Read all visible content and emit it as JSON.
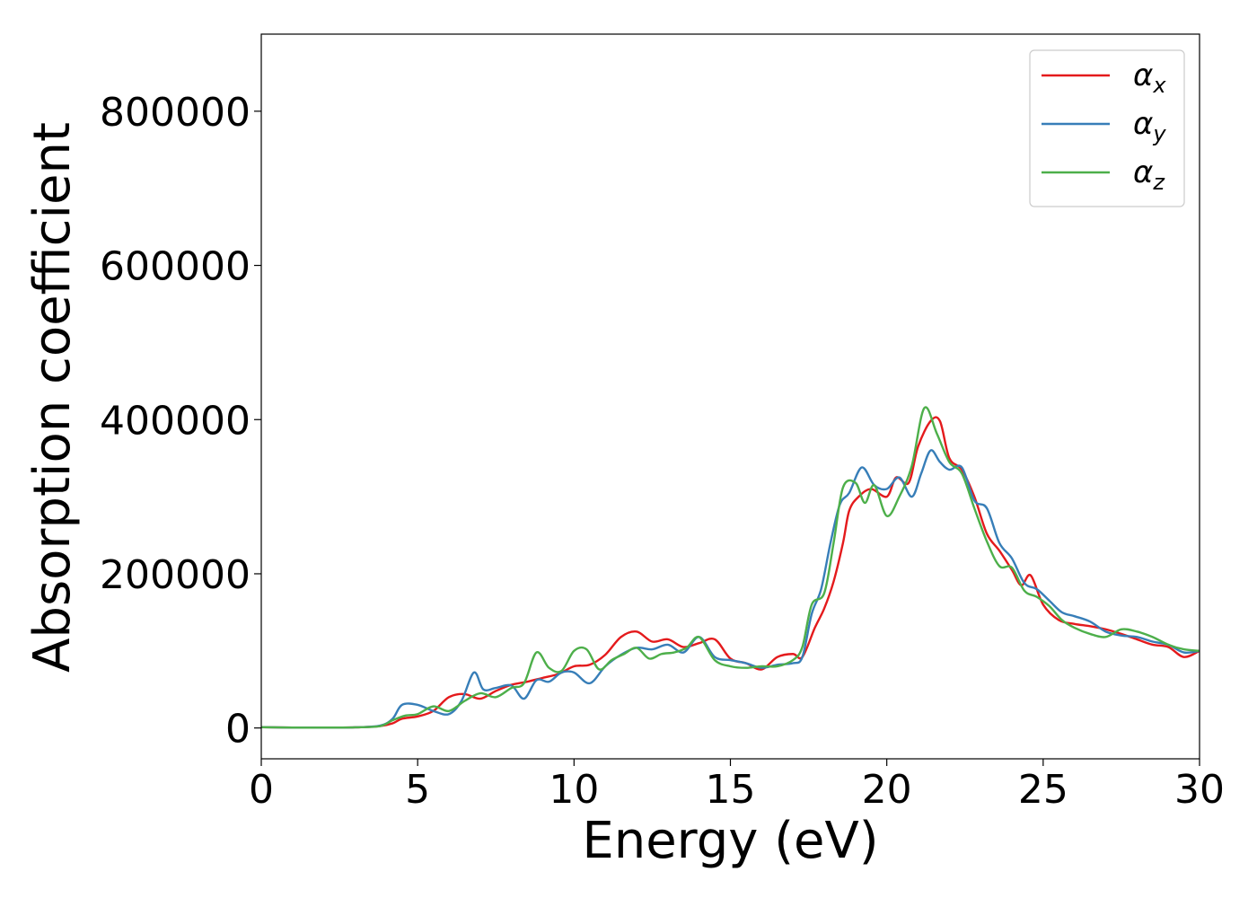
{
  "chart_data": {
    "type": "line",
    "title": "",
    "xlabel": "Energy (eV)",
    "ylabel": "Absorption coefficient",
    "xlim": [
      0,
      30
    ],
    "ylim": [
      -40000,
      900000
    ],
    "x_ticks": [
      0,
      5,
      10,
      15,
      20,
      25,
      30
    ],
    "y_ticks": [
      0,
      200000,
      400000,
      600000,
      800000
    ],
    "x_tick_labels": [
      "0",
      "5",
      "10",
      "15",
      "20",
      "25",
      "30"
    ],
    "y_tick_labels": [
      "0",
      "200000",
      "400000",
      "600000",
      "800000"
    ],
    "grid": false,
    "legend_position": "top-right",
    "series": [
      {
        "name": "αx",
        "symbol": "α",
        "subscript": "x",
        "color": "#e41a1c",
        "points": [
          [
            0,
            1000
          ],
          [
            1,
            500
          ],
          [
            2,
            500
          ],
          [
            3,
            800
          ],
          [
            3.8,
            2500
          ],
          [
            4.2,
            6000
          ],
          [
            4.5,
            12000
          ],
          [
            5,
            15000
          ],
          [
            5.5,
            22000
          ],
          [
            6,
            40000
          ],
          [
            6.5,
            44000
          ],
          [
            7,
            38000
          ],
          [
            7.5,
            48000
          ],
          [
            8,
            56000
          ],
          [
            8.5,
            60000
          ],
          [
            9,
            65000
          ],
          [
            9.5,
            70000
          ],
          [
            10,
            80000
          ],
          [
            10.5,
            82000
          ],
          [
            11,
            95000
          ],
          [
            11.5,
            118000
          ],
          [
            12,
            125000
          ],
          [
            12.5,
            112000
          ],
          [
            13,
            115000
          ],
          [
            13.5,
            105000
          ],
          [
            14,
            110000
          ],
          [
            14.5,
            115000
          ],
          [
            15,
            90000
          ],
          [
            15.5,
            84000
          ],
          [
            16,
            76000
          ],
          [
            16.5,
            92000
          ],
          [
            17,
            96000
          ],
          [
            17.3,
            92000
          ],
          [
            17.7,
            130000
          ],
          [
            18,
            155000
          ],
          [
            18.3,
            190000
          ],
          [
            18.6,
            240000
          ],
          [
            18.8,
            282000
          ],
          [
            19.1,
            300000
          ],
          [
            19.5,
            310000
          ],
          [
            20,
            300000
          ],
          [
            20.3,
            325000
          ],
          [
            20.7,
            318000
          ],
          [
            21,
            365000
          ],
          [
            21.4,
            398000
          ],
          [
            21.7,
            398000
          ],
          [
            22,
            350000
          ],
          [
            22.4,
            335000
          ],
          [
            22.8,
            300000
          ],
          [
            23.2,
            252000
          ],
          [
            23.6,
            230000
          ],
          [
            24,
            205000
          ],
          [
            24.3,
            185000
          ],
          [
            24.6,
            198000
          ],
          [
            25,
            160000
          ],
          [
            25.5,
            140000
          ],
          [
            26,
            135000
          ],
          [
            26.5,
            132000
          ],
          [
            27,
            128000
          ],
          [
            27.5,
            122000
          ],
          [
            28,
            115000
          ],
          [
            28.5,
            108000
          ],
          [
            29,
            105000
          ],
          [
            29.5,
            92000
          ],
          [
            30,
            100000
          ]
        ]
      },
      {
        "name": "αy",
        "symbol": "α",
        "subscript": "y",
        "color": "#377eb8",
        "points": [
          [
            0,
            1000
          ],
          [
            1,
            500
          ],
          [
            2,
            500
          ],
          [
            3,
            800
          ],
          [
            3.8,
            3000
          ],
          [
            4.2,
            12000
          ],
          [
            4.5,
            30000
          ],
          [
            5,
            30000
          ],
          [
            5.5,
            22000
          ],
          [
            6,
            18000
          ],
          [
            6.4,
            35000
          ],
          [
            6.8,
            72000
          ],
          [
            7.1,
            50000
          ],
          [
            7.5,
            52000
          ],
          [
            8,
            55000
          ],
          [
            8.4,
            38000
          ],
          [
            8.8,
            62000
          ],
          [
            9.2,
            60000
          ],
          [
            9.6,
            72000
          ],
          [
            10,
            72000
          ],
          [
            10.5,
            58000
          ],
          [
            11,
            80000
          ],
          [
            11.5,
            95000
          ],
          [
            12,
            104000
          ],
          [
            12.5,
            102000
          ],
          [
            13,
            108000
          ],
          [
            13.5,
            98000
          ],
          [
            14,
            118000
          ],
          [
            14.5,
            92000
          ],
          [
            15,
            88000
          ],
          [
            15.5,
            84000
          ],
          [
            16,
            78000
          ],
          [
            16.5,
            82000
          ],
          [
            17,
            84000
          ],
          [
            17.3,
            92000
          ],
          [
            17.6,
            148000
          ],
          [
            17.9,
            180000
          ],
          [
            18.2,
            240000
          ],
          [
            18.5,
            290000
          ],
          [
            18.8,
            305000
          ],
          [
            19.2,
            338000
          ],
          [
            19.6,
            315000
          ],
          [
            20,
            310000
          ],
          [
            20.4,
            325000
          ],
          [
            20.8,
            300000
          ],
          [
            21.1,
            330000
          ],
          [
            21.4,
            360000
          ],
          [
            21.7,
            345000
          ],
          [
            22,
            335000
          ],
          [
            22.4,
            338000
          ],
          [
            22.8,
            295000
          ],
          [
            23.2,
            285000
          ],
          [
            23.6,
            240000
          ],
          [
            24,
            220000
          ],
          [
            24.4,
            188000
          ],
          [
            24.8,
            180000
          ],
          [
            25.2,
            165000
          ],
          [
            25.6,
            150000
          ],
          [
            26,
            145000
          ],
          [
            26.5,
            138000
          ],
          [
            27,
            125000
          ],
          [
            27.5,
            120000
          ],
          [
            28,
            118000
          ],
          [
            28.5,
            112000
          ],
          [
            29,
            108000
          ],
          [
            29.5,
            98000
          ],
          [
            30,
            100000
          ]
        ]
      },
      {
        "name": "αz",
        "symbol": "α",
        "subscript": "z",
        "color": "#4daf4a",
        "points": [
          [
            0,
            1000
          ],
          [
            1,
            500
          ],
          [
            2,
            500
          ],
          [
            3,
            800
          ],
          [
            3.8,
            2500
          ],
          [
            4.2,
            10000
          ],
          [
            4.6,
            16000
          ],
          [
            5,
            18000
          ],
          [
            5.5,
            28000
          ],
          [
            6,
            22000
          ],
          [
            6.5,
            35000
          ],
          [
            7,
            45000
          ],
          [
            7.5,
            40000
          ],
          [
            8,
            52000
          ],
          [
            8.4,
            58000
          ],
          [
            8.8,
            98000
          ],
          [
            9.2,
            78000
          ],
          [
            9.6,
            74000
          ],
          [
            10,
            100000
          ],
          [
            10.4,
            102000
          ],
          [
            10.8,
            76000
          ],
          [
            11.2,
            88000
          ],
          [
            11.6,
            96000
          ],
          [
            12,
            104000
          ],
          [
            12.4,
            90000
          ],
          [
            12.8,
            96000
          ],
          [
            13.2,
            98000
          ],
          [
            13.6,
            104000
          ],
          [
            14,
            118000
          ],
          [
            14.5,
            88000
          ],
          [
            15,
            80000
          ],
          [
            15.5,
            78000
          ],
          [
            16,
            80000
          ],
          [
            16.5,
            80000
          ],
          [
            17,
            88000
          ],
          [
            17.3,
            105000
          ],
          [
            17.6,
            160000
          ],
          [
            18,
            175000
          ],
          [
            18.3,
            240000
          ],
          [
            18.6,
            312000
          ],
          [
            19,
            318000
          ],
          [
            19.3,
            292000
          ],
          [
            19.6,
            315000
          ],
          [
            20,
            275000
          ],
          [
            20.4,
            300000
          ],
          [
            20.8,
            340000
          ],
          [
            21.2,
            415000
          ],
          [
            21.6,
            382000
          ],
          [
            22,
            345000
          ],
          [
            22.4,
            330000
          ],
          [
            22.8,
            285000
          ],
          [
            23.2,
            242000
          ],
          [
            23.6,
            210000
          ],
          [
            24,
            208000
          ],
          [
            24.4,
            178000
          ],
          [
            24.8,
            170000
          ],
          [
            25.2,
            158000
          ],
          [
            25.6,
            140000
          ],
          [
            26,
            130000
          ],
          [
            26.5,
            122000
          ],
          [
            27,
            118000
          ],
          [
            27.5,
            128000
          ],
          [
            28,
            125000
          ],
          [
            28.5,
            118000
          ],
          [
            29,
            108000
          ],
          [
            29.5,
            102000
          ],
          [
            30,
            100000
          ]
        ]
      }
    ]
  }
}
